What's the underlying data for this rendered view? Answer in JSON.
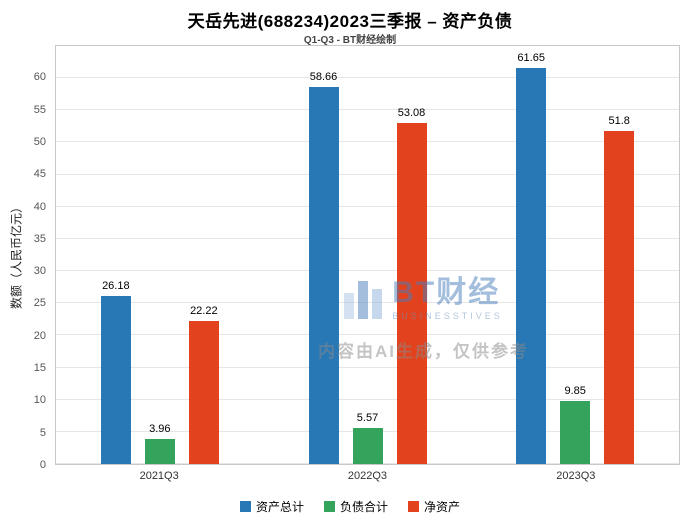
{
  "title": "天岳先进(688234)2023三季报 – 资产负债",
  "subtitle": "Q1-Q3 - BT财经绘制",
  "chart_data": {
    "type": "bar",
    "categories": [
      "2021Q3",
      "2022Q3",
      "2023Q3"
    ],
    "series": [
      {
        "name": "资产总计",
        "color": "#2878b5",
        "values": [
          26.18,
          58.66,
          61.65
        ]
      },
      {
        "name": "负债合计",
        "color": "#34a45c",
        "values": [
          3.96,
          5.57,
          9.85
        ]
      },
      {
        "name": "净资产",
        "color": "#e2431e",
        "values": [
          22.22,
          53.08,
          51.8
        ]
      }
    ],
    "xlabel": "",
    "ylabel": "数额（人民币亿元）",
    "yticks": [
      0,
      5,
      10,
      15,
      20,
      25,
      30,
      35,
      40,
      45,
      50,
      55,
      60
    ],
    "ylim": [
      0,
      65
    ],
    "grid": true,
    "legend_position": "bottom"
  },
  "watermark": {
    "logo_text": "BT财经",
    "logo_subtext": "BUSINESSTIVES",
    "disclaimer": "内容由AI生成，仅供参考"
  }
}
